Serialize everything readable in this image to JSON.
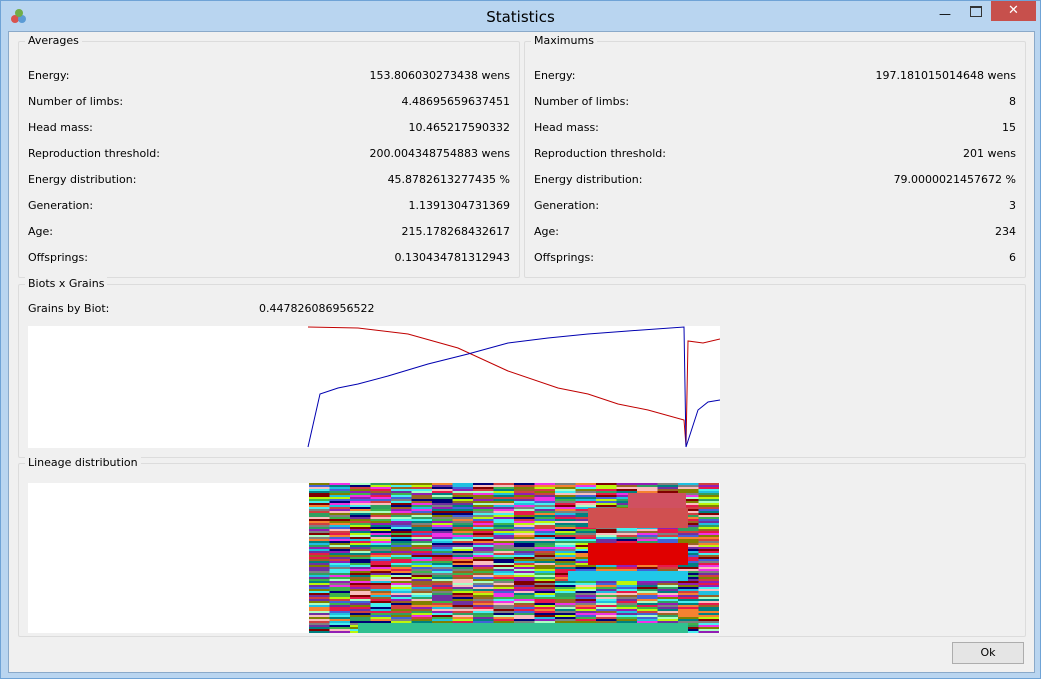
{
  "window": {
    "title": "Statistics"
  },
  "averages": {
    "title": "Averages",
    "rows": [
      {
        "label": "Energy:",
        "value": "153.806030273438 wens"
      },
      {
        "label": "Number of limbs:",
        "value": "4.48695659637451"
      },
      {
        "label": "Head mass:",
        "value": "10.465217590332"
      },
      {
        "label": "Reproduction threshold:",
        "value": "200.004348754883 wens"
      },
      {
        "label": "Energy distribution:",
        "value": "45.8782613277435 %"
      },
      {
        "label": "Generation:",
        "value": "1.1391304731369"
      },
      {
        "label": "Age:",
        "value": "215.178268432617"
      },
      {
        "label": "Offsprings:",
        "value": "0.130434781312943"
      }
    ]
  },
  "maximums": {
    "title": "Maximums",
    "rows": [
      {
        "label": "Energy:",
        "value": "197.181015014648 wens"
      },
      {
        "label": "Number of limbs:",
        "value": "8"
      },
      {
        "label": "Head mass:",
        "value": "15"
      },
      {
        "label": "Reproduction threshold:",
        "value": "201 wens"
      },
      {
        "label": "Energy distribution:",
        "value": "79.0000021457672 %"
      },
      {
        "label": "Generation:",
        "value": "3"
      },
      {
        "label": "Age:",
        "value": "234"
      },
      {
        "label": "Offsprings:",
        "value": "6"
      }
    ]
  },
  "biots_grains": {
    "title": "Biots x Grains",
    "label": "Grains by Biot:",
    "value": "0.447826086956522"
  },
  "lineage": {
    "title": "Lineage distribution"
  },
  "button": {
    "label": "Ok"
  }
}
